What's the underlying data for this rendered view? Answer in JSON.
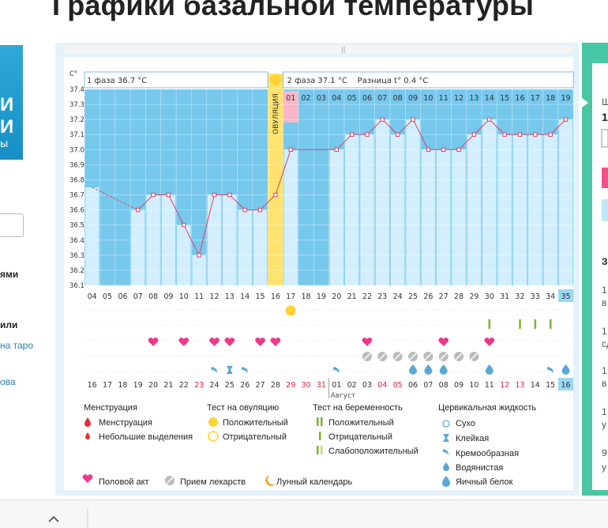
{
  "page": {
    "title": "Графики базальной температуры"
  },
  "left_sidebar": {
    "texts": [
      "ями",
      "или",
      "на таро",
      "ова"
    ]
  },
  "right_panel": {
    "texts": [
      "Ш",
      "1",
      "З",
      "1",
      "в",
      "1",
      "сд",
      "1",
      "в",
      "1",
      "у",
      "9",
      "у"
    ]
  },
  "header": {
    "unit": "C°",
    "phase1": "1 фаза 36.7 °C",
    "phase2": "2 фаза 37.1 °C",
    "diff": "Разница t° 0.4 °C",
    "ovulation_label": "ОВУЛЯЦИЯ"
  },
  "colors": {
    "phase_bg": "#76c8ed",
    "bar": "#d3efff",
    "ovulation": "#ffe36e",
    "line": "#e0406a",
    "highlight_pink": "#f9b6c8",
    "bottom_highlight": "#9ad8f4"
  },
  "chart_data": {
    "type": "line",
    "xlabel": "",
    "ylabel": "C°",
    "ylim": [
      36.1,
      37.4
    ],
    "yticks": [
      "37.4",
      "37.3",
      "37.2",
      "37.1",
      "37.0",
      "36.9",
      "36.8",
      "36.7",
      "36.6",
      "36.5",
      "36.4",
      "36.3",
      "36.2",
      "36.1"
    ],
    "cycle_days": [
      "04",
      "05",
      "06",
      "07",
      "08",
      "09",
      "10",
      "11",
      "12",
      "13",
      "14",
      "15",
      "16",
      "17",
      "18",
      "19",
      "20",
      "21",
      "22",
      "23",
      "24",
      "25",
      "26",
      "27",
      "28",
      "29",
      "30",
      "31",
      "32",
      "33",
      "34",
      "35"
    ],
    "top_day_numbers": [
      "01",
      "02",
      "03",
      "04",
      "05",
      "06",
      "07",
      "08",
      "09",
      "10",
      "11",
      "12",
      "13",
      "14",
      "15",
      "16",
      "17",
      "18",
      "19"
    ],
    "dates": [
      "16",
      "17",
      "18",
      "19",
      "20",
      "21",
      "22",
      "23",
      "24",
      "25",
      "26",
      "27",
      "28",
      "29",
      "30",
      "31",
      "01",
      "02",
      "03",
      "04",
      "05",
      "06",
      "07",
      "08",
      "09",
      "10",
      "11",
      "12",
      "13",
      "14",
      "15",
      "16"
    ],
    "date_red": [
      false,
      false,
      false,
      false,
      false,
      false,
      false,
      true,
      false,
      false,
      false,
      false,
      false,
      true,
      true,
      true,
      false,
      false,
      false,
      true,
      true,
      false,
      false,
      false,
      false,
      false,
      false,
      true,
      true,
      false,
      false,
      false
    ],
    "month_label": "Август",
    "temperatures": [
      36.75,
      null,
      null,
      36.6,
      36.7,
      36.7,
      36.5,
      36.3,
      36.7,
      36.7,
      36.6,
      36.6,
      36.7,
      37.0,
      null,
      null,
      37.0,
      37.1,
      37.1,
      37.2,
      37.1,
      37.2,
      37.0,
      37.0,
      37.0,
      37.1,
      37.2,
      37.1,
      37.1,
      37.1,
      37.1,
      37.2
    ],
    "ovulation_day": "16",
    "highlight_day": "17"
  },
  "legend": {
    "menstruation": {
      "title": "Менструация",
      "items": [
        "Менструация",
        "Небольшие выделения"
      ]
    },
    "ovulation_test": {
      "title": "Тест на овуляцию",
      "items": [
        "Положительный",
        "Отрицательный"
      ]
    },
    "pregnancy_test": {
      "title": "Тест на беременность",
      "items": [
        "Положительный",
        "Отрицательный",
        "Слабоположительный"
      ]
    },
    "cervical": {
      "title": "Цервикальная жидкость",
      "items": [
        "Сухо",
        "Клейкая",
        "Кремообразная",
        "Водянистая",
        "Яичный белок"
      ]
    },
    "bottom": [
      "Половой акт",
      "Прием лекарств",
      "Лунный календарь"
    ]
  }
}
